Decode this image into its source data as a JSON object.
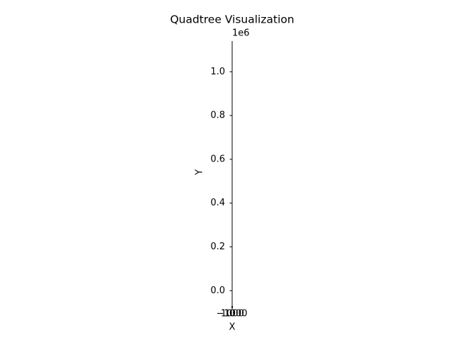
{
  "chart_data": {
    "type": "quadtree",
    "title": "Quadtree Visualization",
    "x_label": "X",
    "y_label": "Y",
    "y_offset_label": "1e6",
    "xlim": [
      -1200,
      1200
    ],
    "xticks": [
      {
        "value": -1000,
        "label": "−1000"
      },
      0,
      1000
    ],
    "ylim": [
      -70000,
      1140000
    ],
    "yticks": [
      {
        "value": 0,
        "label": "0.0"
      },
      {
        "value": 200000,
        "label": "0.2"
      },
      {
        "value": 400000,
        "label": "0.4"
      },
      {
        "value": 600000,
        "label": "0.6"
      },
      {
        "value": 800000,
        "label": "0.8"
      },
      {
        "value": 1000000,
        "label": "1.0"
      }
    ],
    "spine_color": "#000000"
  }
}
